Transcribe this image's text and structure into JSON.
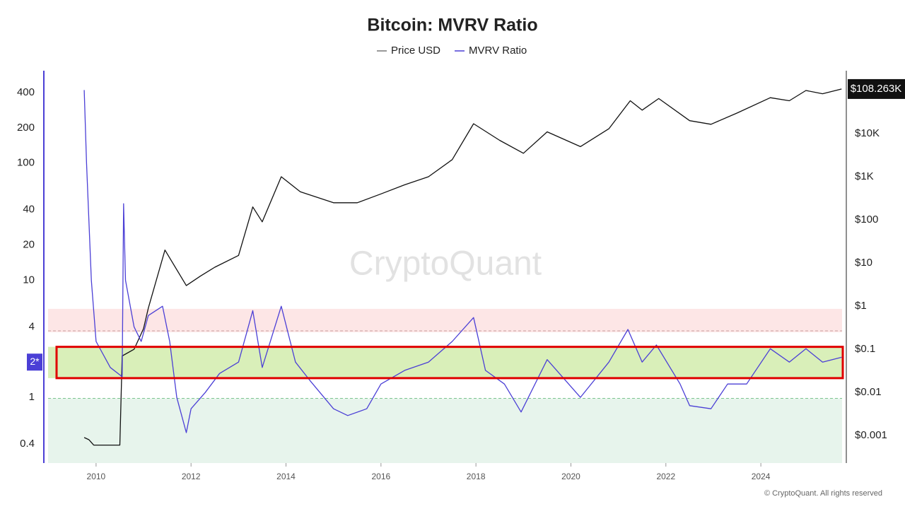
{
  "chart_data": {
    "type": "line",
    "title": "Bitcoin: MVRV Ratio",
    "watermark": "CryptoQuant",
    "footer": "© CryptoQuant. All rights reserved",
    "log_scale": true,
    "xlim": [
      2008.9,
      2025.8
    ],
    "xticks": [
      2010,
      2012,
      2014,
      2016,
      2018,
      2020,
      2022,
      2024
    ],
    "ylim": [
      0.275,
      615
    ],
    "yticks": [
      400,
      200,
      100,
      40,
      20,
      10,
      4,
      1,
      0.4
    ],
    "y2lim": [
      0.00023,
      288000
    ],
    "y2ticks": [
      {
        "value": 10000,
        "label": "$10K"
      },
      {
        "value": 1000,
        "label": "$1K"
      },
      {
        "value": 100,
        "label": "$100"
      },
      {
        "value": 10,
        "label": "$10"
      },
      {
        "value": 1,
        "label": "$1"
      },
      {
        "value": 0.1,
        "label": "$0.1"
      },
      {
        "value": 0.01,
        "label": "$0.01"
      },
      {
        "value": 0.001,
        "label": "$0.001"
      }
    ],
    "bands": [
      {
        "from": 3.6,
        "to": 5.7,
        "color": "#fde6e6"
      },
      {
        "from": 0.275,
        "to": 0.98,
        "color": "#e7f4ec"
      },
      {
        "from": 1.46,
        "to": 2.7,
        "color": "#d9efb9"
      }
    ],
    "dashed_levels": [
      {
        "value": 3.7,
        "color": "#c9a0a0"
      },
      {
        "value": 0.98,
        "color": "#7cc48f"
      }
    ],
    "highlight": {
      "from": 1.46,
      "to": 2.7,
      "color": "#e00000"
    },
    "current_marker": {
      "value": 2,
      "label": "2*",
      "color": "#4b3fd6"
    },
    "last_price": {
      "value": 108263,
      "label": "$108.263K"
    },
    "series": [
      {
        "name": "Price USD",
        "color": "#111111",
        "axis": "y2",
        "x": [
          2009.75,
          2009.85,
          2009.95,
          2010.5,
          2010.55,
          2010.8,
          2011.0,
          2011.1,
          2011.45,
          2011.9,
          2012.2,
          2012.5,
          2013.0,
          2013.3,
          2013.5,
          2013.9,
          2014.3,
          2015.0,
          2015.5,
          2016.0,
          2016.5,
          2017.0,
          2017.5,
          2017.95,
          2018.5,
          2019.0,
          2019.5,
          2020.2,
          2020.8,
          2021.25,
          2021.5,
          2021.85,
          2022.5,
          2022.95,
          2023.5,
          2024.2,
          2024.6,
          2024.95,
          2025.3,
          2025.7
        ],
        "values": [
          0.0009,
          0.0008,
          0.0006,
          0.0006,
          0.07,
          0.1,
          0.3,
          0.9,
          20,
          3,
          5,
          8,
          15,
          200,
          90,
          1000,
          450,
          250,
          250,
          400,
          650,
          1000,
          2500,
          17000,
          7000,
          3500,
          11000,
          5000,
          13000,
          58000,
          35000,
          65000,
          20000,
          16500,
          30000,
          68000,
          58000,
          100000,
          84000,
          108263
        ]
      },
      {
        "name": "MVRV Ratio",
        "color": "#4b3fd6",
        "x": [
          2009.75,
          2009.8,
          2009.9,
          2010.0,
          2010.3,
          2010.55,
          2010.58,
          2010.62,
          2010.8,
          2010.95,
          2011.1,
          2011.4,
          2011.55,
          2011.7,
          2011.9,
          2012.0,
          2012.3,
          2012.6,
          2013.0,
          2013.3,
          2013.5,
          2013.9,
          2014.2,
          2014.5,
          2015.0,
          2015.3,
          2015.7,
          2016.0,
          2016.5,
          2017.0,
          2017.5,
          2017.95,
          2018.2,
          2018.6,
          2018.95,
          2019.5,
          2020.2,
          2020.8,
          2021.2,
          2021.5,
          2021.8,
          2022.3,
          2022.5,
          2022.95,
          2023.3,
          2023.7,
          2024.2,
          2024.6,
          2024.95,
          2025.3,
          2025.7
        ],
        "values": [
          420,
          100,
          10,
          3,
          1.8,
          1.5,
          45,
          10,
          4,
          3,
          5,
          6,
          3,
          1,
          0.5,
          0.8,
          1.1,
          1.6,
          2,
          5.5,
          1.8,
          6,
          2,
          1.4,
          0.8,
          0.7,
          0.8,
          1.3,
          1.7,
          2,
          3,
          4.8,
          1.7,
          1.3,
          0.75,
          2.1,
          1,
          2,
          3.8,
          2,
          2.8,
          1.3,
          0.85,
          0.8,
          1.3,
          1.3,
          2.6,
          2,
          2.6,
          2,
          2.2
        ]
      }
    ]
  }
}
